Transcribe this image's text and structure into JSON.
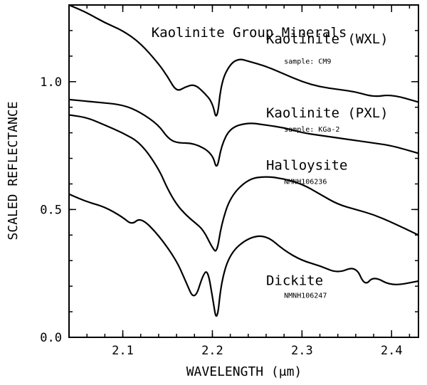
{
  "chart_data": {
    "type": "line",
    "title": "Kaolinite Group Minerals",
    "xlabel": "WAVELENGTH (μm)",
    "ylabel": "SCALED REFLECTANCE",
    "xlim": [
      2.04,
      2.43
    ],
    "ylim": [
      0.0,
      1.3
    ],
    "x_ticks": [
      2.1,
      2.2,
      2.3,
      2.4
    ],
    "x_tick_labels": [
      "2.1",
      "2.2",
      "2.3",
      "2.4"
    ],
    "y_ticks": [
      0.0,
      0.5,
      1.0
    ],
    "y_tick_labels": [
      "0.0",
      "0.5",
      "1.0"
    ],
    "grid": false,
    "series": [
      {
        "name": "Kaolinite (WXL)",
        "sample": "sample: CM9",
        "x": [
          2.04,
          2.06,
          2.08,
          2.1,
          2.12,
          2.14,
          2.15,
          2.16,
          2.17,
          2.18,
          2.19,
          2.2,
          2.205,
          2.21,
          2.22,
          2.23,
          2.24,
          2.26,
          2.28,
          2.3,
          2.32,
          2.34,
          2.36,
          2.38,
          2.4,
          2.43
        ],
        "y": [
          1.3,
          1.27,
          1.23,
          1.2,
          1.15,
          1.07,
          1.02,
          0.96,
          0.98,
          0.99,
          0.96,
          0.92,
          0.84,
          1.0,
          1.07,
          1.09,
          1.08,
          1.06,
          1.03,
          1.0,
          0.98,
          0.97,
          0.96,
          0.94,
          0.95,
          0.92
        ]
      },
      {
        "name": "Kaolinite (PXL)",
        "sample": "sample: KGa-2",
        "x": [
          2.04,
          2.07,
          2.1,
          2.12,
          2.14,
          2.15,
          2.16,
          2.18,
          2.2,
          2.205,
          2.21,
          2.22,
          2.24,
          2.26,
          2.28,
          2.3,
          2.32,
          2.34,
          2.36,
          2.38,
          2.4,
          2.43
        ],
        "y": [
          0.93,
          0.92,
          0.91,
          0.88,
          0.83,
          0.78,
          0.76,
          0.76,
          0.72,
          0.65,
          0.75,
          0.82,
          0.84,
          0.83,
          0.82,
          0.8,
          0.79,
          0.78,
          0.77,
          0.76,
          0.75,
          0.72
        ]
      },
      {
        "name": "Halloysite",
        "sample": "NMNH106236",
        "x": [
          2.04,
          2.06,
          2.08,
          2.1,
          2.12,
          2.14,
          2.15,
          2.16,
          2.17,
          2.18,
          2.19,
          2.2,
          2.205,
          2.21,
          2.22,
          2.24,
          2.26,
          2.28,
          2.3,
          2.32,
          2.34,
          2.36,
          2.38,
          2.4,
          2.43
        ],
        "y": [
          0.87,
          0.86,
          0.83,
          0.8,
          0.76,
          0.66,
          0.58,
          0.52,
          0.48,
          0.45,
          0.42,
          0.35,
          0.33,
          0.44,
          0.55,
          0.62,
          0.63,
          0.62,
          0.6,
          0.56,
          0.52,
          0.5,
          0.48,
          0.45,
          0.4
        ]
      },
      {
        "name": "Dickite",
        "sample": "NMNH106247",
        "x": [
          2.04,
          2.06,
          2.08,
          2.1,
          2.11,
          2.12,
          2.14,
          2.16,
          2.17,
          2.18,
          2.19,
          2.195,
          2.2,
          2.205,
          2.21,
          2.22,
          2.24,
          2.26,
          2.28,
          2.3,
          2.32,
          2.34,
          2.36,
          2.37,
          2.38,
          2.4,
          2.43
        ],
        "y": [
          0.56,
          0.53,
          0.51,
          0.47,
          0.44,
          0.47,
          0.4,
          0.3,
          0.22,
          0.14,
          0.25,
          0.26,
          0.16,
          0.05,
          0.22,
          0.33,
          0.39,
          0.4,
          0.34,
          0.3,
          0.28,
          0.25,
          0.28,
          0.2,
          0.24,
          0.2,
          0.22
        ]
      }
    ],
    "annotations": [
      {
        "series": 0,
        "name_x": 2.26,
        "name_y": 1.15,
        "sample_x": 2.28,
        "sample_y": 1.07
      },
      {
        "series": 1,
        "name_x": 2.26,
        "name_y": 0.86,
        "sample_x": 2.28,
        "sample_y": 0.805
      },
      {
        "series": 2,
        "name_x": 2.26,
        "name_y": 0.655,
        "sample_x": 2.28,
        "sample_y": 0.6
      },
      {
        "series": 3,
        "name_x": 2.26,
        "name_y": 0.205,
        "sample_x": 2.28,
        "sample_y": 0.155
      }
    ]
  }
}
